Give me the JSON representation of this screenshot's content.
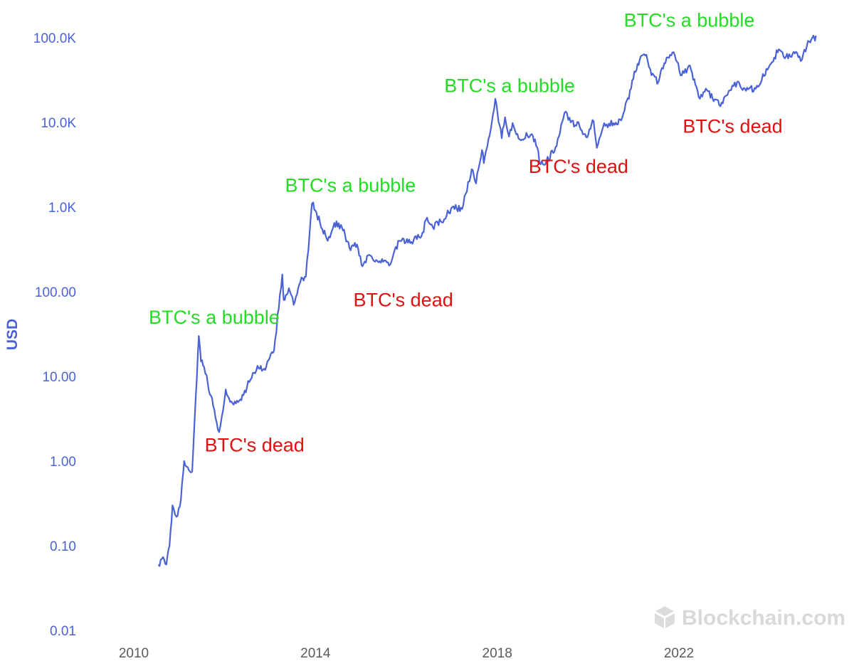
{
  "chart_data": {
    "type": "line",
    "title": "",
    "xlabel": "",
    "ylabel": "USD",
    "yscale": "log",
    "ylim": [
      0.01,
      100000
    ],
    "xlim": [
      "2009-10-01",
      "2025-01-15"
    ],
    "grid": false,
    "yticks": [
      "0.01",
      "0.10",
      "1.00",
      "10.00",
      "100.00",
      "1.0K",
      "10.0K",
      "100.0K"
    ],
    "xticks": [
      "2010",
      "2014",
      "2018",
      "2022"
    ],
    "series": [
      {
        "color": "#4a62d6",
        "points": [
          [
            "2010-07-18",
            0.06
          ],
          [
            "2010-08-15",
            0.07
          ],
          [
            "2010-09-20",
            0.06
          ],
          [
            "2010-10-15",
            0.1
          ],
          [
            "2010-11-08",
            0.3
          ],
          [
            "2010-12-10",
            0.22
          ],
          [
            "2011-01-15",
            0.35
          ],
          [
            "2011-02-10",
            1.0
          ],
          [
            "2011-03-10",
            0.85
          ],
          [
            "2011-04-15",
            0.75
          ],
          [
            "2011-05-15",
            6.0
          ],
          [
            "2011-06-08",
            30.0
          ],
          [
            "2011-06-25",
            15.0
          ],
          [
            "2011-07-20",
            13.0
          ],
          [
            "2011-08-20",
            8.0
          ],
          [
            "2011-10-01",
            4.5
          ],
          [
            "2011-11-18",
            2.2
          ],
          [
            "2011-12-20",
            4.0
          ],
          [
            "2012-01-10",
            7.0
          ],
          [
            "2012-02-15",
            5.0
          ],
          [
            "2012-04-01",
            4.8
          ],
          [
            "2012-06-01",
            6.0
          ],
          [
            "2012-08-15",
            11.0
          ],
          [
            "2012-10-01",
            12.5
          ],
          [
            "2012-12-01",
            13.0
          ],
          [
            "2013-02-01",
            20.0
          ],
          [
            "2013-04-09",
            160.0
          ],
          [
            "2013-04-20",
            80.0
          ],
          [
            "2013-06-01",
            110.0
          ],
          [
            "2013-07-10",
            70.0
          ],
          [
            "2013-09-01",
            130.0
          ],
          [
            "2013-10-15",
            150.0
          ],
          [
            "2013-11-15",
            500.0
          ],
          [
            "2013-12-04",
            1100.0
          ],
          [
            "2014-01-10",
            850.0
          ],
          [
            "2014-02-25",
            550.0
          ],
          [
            "2014-04-10",
            400.0
          ],
          [
            "2014-06-01",
            650.0
          ],
          [
            "2014-08-01",
            580.0
          ],
          [
            "2014-10-01",
            330.0
          ],
          [
            "2014-12-01",
            360.0
          ],
          [
            "2015-01-14",
            200.0
          ],
          [
            "2015-03-01",
            270.0
          ],
          [
            "2015-06-01",
            230.0
          ],
          [
            "2015-08-25",
            210.0
          ],
          [
            "2015-11-05",
            400.0
          ],
          [
            "2016-01-15",
            380.0
          ],
          [
            "2016-05-01",
            450.0
          ],
          [
            "2016-06-16",
            750.0
          ],
          [
            "2016-08-01",
            580.0
          ],
          [
            "2016-11-01",
            720.0
          ],
          [
            "2017-01-05",
            1000.0
          ],
          [
            "2017-03-25",
            950.0
          ],
          [
            "2017-06-10",
            2800.0
          ],
          [
            "2017-07-15",
            1900.0
          ],
          [
            "2017-09-01",
            4700.0
          ],
          [
            "2017-09-15",
            3300.0
          ],
          [
            "2017-11-01",
            7000.0
          ],
          [
            "2017-12-17",
            19000.0
          ],
          [
            "2018-02-06",
            6500.0
          ],
          [
            "2018-03-05",
            11500.0
          ],
          [
            "2018-04-06",
            6800.0
          ],
          [
            "2018-05-05",
            9800.0
          ],
          [
            "2018-07-01",
            6300.0
          ],
          [
            "2018-09-01",
            7000.0
          ],
          [
            "2018-11-01",
            6300.0
          ],
          [
            "2018-12-15",
            3200.0
          ],
          [
            "2019-02-01",
            3500.0
          ],
          [
            "2019-04-15",
            5100.0
          ],
          [
            "2019-06-26",
            13000.0
          ],
          [
            "2019-08-15",
            10000.0
          ],
          [
            "2019-10-25",
            9000.0
          ],
          [
            "2019-12-17",
            6700.0
          ],
          [
            "2020-02-15",
            10300.0
          ],
          [
            "2020-03-12",
            5000.0
          ],
          [
            "2020-05-01",
            8800.0
          ],
          [
            "2020-07-25",
            9800.0
          ],
          [
            "2020-09-15",
            10800.0
          ],
          [
            "2020-11-25",
            19000.0
          ],
          [
            "2021-01-08",
            40000.0
          ],
          [
            "2021-02-20",
            55000.0
          ],
          [
            "2021-04-14",
            63000.0
          ],
          [
            "2021-05-25",
            36000.0
          ],
          [
            "2021-07-20",
            30000.0
          ],
          [
            "2021-09-05",
            50000.0
          ],
          [
            "2021-11-10",
            67000.0
          ],
          [
            "2022-01-24",
            36000.0
          ],
          [
            "2022-03-30",
            47000.0
          ],
          [
            "2022-06-18",
            19000.0
          ],
          [
            "2022-08-15",
            24000.0
          ],
          [
            "2022-11-21",
            16000.0
          ],
          [
            "2023-02-15",
            24000.0
          ],
          [
            "2023-04-14",
            30000.0
          ],
          [
            "2023-06-15",
            25000.0
          ],
          [
            "2023-09-11",
            25000.0
          ],
          [
            "2023-12-15",
            42000.0
          ],
          [
            "2024-03-14",
            73000.0
          ],
          [
            "2024-05-01",
            57000.0
          ],
          [
            "2024-07-30",
            68000.0
          ],
          [
            "2024-09-06",
            53000.0
          ],
          [
            "2024-11-13",
            90000.0
          ],
          [
            "2024-12-17",
            106000.0
          ],
          [
            "2024-12-30",
            92000.0
          ],
          [
            "2025-01-10",
            102000.0
          ]
        ]
      }
    ],
    "annotations": [
      {
        "text": "BTC's a bubble",
        "color": "#22dd22",
        "x": "2010-05-01",
        "y": 50
      },
      {
        "text": "BTC's dead",
        "color": "#e01010",
        "x": "2011-07-25",
        "y": 1.55
      },
      {
        "text": "BTC's a bubble",
        "color": "#22dd22",
        "x": "2013-05-01",
        "y": 1800
      },
      {
        "text": "BTC's dead",
        "color": "#e01010",
        "x": "2014-11-01",
        "y": 80
      },
      {
        "text": "BTC's a bubble",
        "color": "#22dd22",
        "x": "2016-11-01",
        "y": 27000
      },
      {
        "text": "BTC's dead",
        "color": "#e01010",
        "x": "2018-09-10",
        "y": 3000
      },
      {
        "text": "BTC's a bubble",
        "color": "#22dd22",
        "x": "2020-10-15",
        "y": 160000
      },
      {
        "text": "BTC's dead",
        "color": "#e01010",
        "x": "2022-02-01",
        "y": 9000
      }
    ]
  },
  "watermark": {
    "text": "Blockchain.com",
    "icon": "blockchain-logo-icon"
  }
}
